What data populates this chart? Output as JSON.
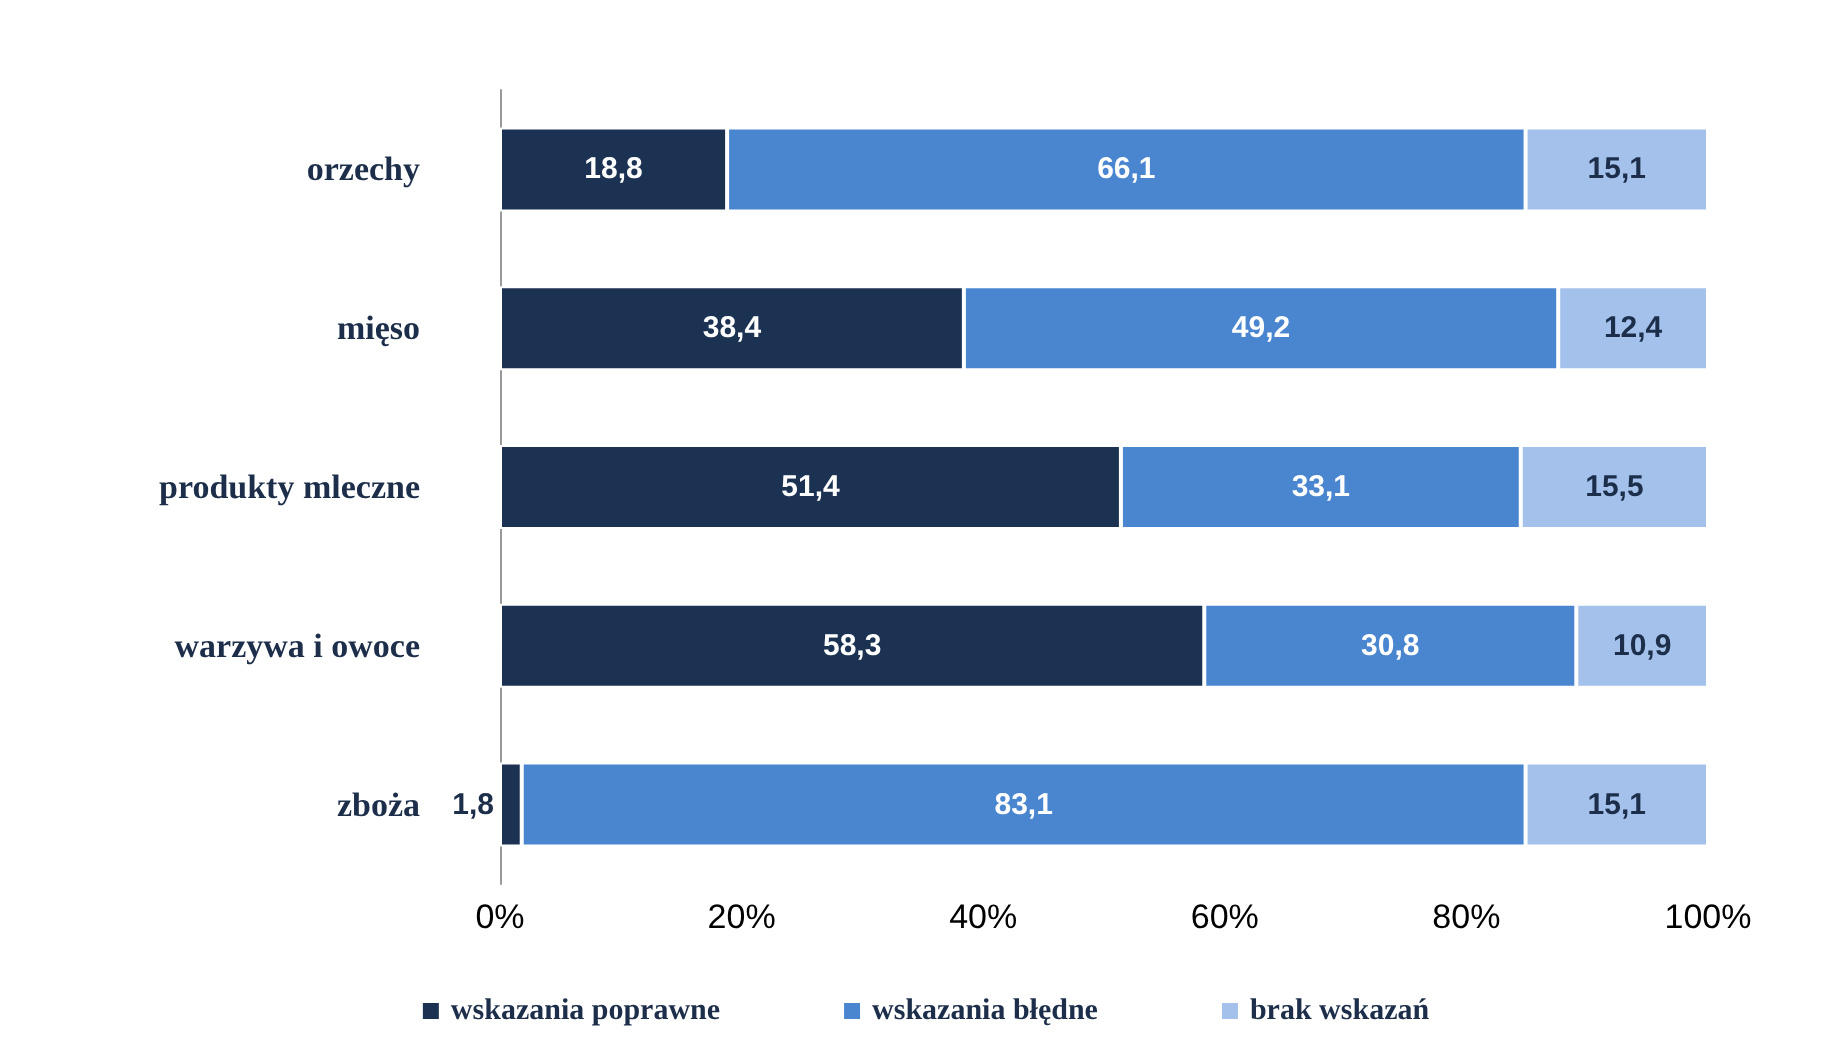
{
  "chart_data": {
    "type": "bar",
    "orientation": "horizontal",
    "stacked": true,
    "categories": [
      "orzechy",
      "mięso",
      "produkty mleczne",
      "warzywa i owoce",
      "zboża"
    ],
    "series": [
      {
        "name": "wskazania poprawne",
        "color": "#1c3253",
        "values": [
          18.8,
          38.4,
          51.4,
          58.3,
          1.8
        ],
        "value_labels": [
          "18,8",
          "38,4",
          "51,4",
          "58,3",
          "1,8"
        ]
      },
      {
        "name": "wskazania błędne",
        "color": "#4a86d0",
        "values": [
          66.1,
          49.2,
          33.1,
          30.8,
          83.1
        ],
        "value_labels": [
          "66,1",
          "49,2",
          "33,1",
          "30,8",
          "83,1"
        ]
      },
      {
        "name": "brak wskazań",
        "color": "#a3c1ea",
        "values": [
          15.1,
          12.4,
          15.5,
          10.9,
          15.1
        ],
        "value_labels": [
          "15,1",
          "12,4",
          "15,5",
          "10,9",
          "15,1"
        ]
      }
    ],
    "xlim": [
      0,
      100
    ],
    "xticks": [
      {
        "value": 0,
        "label": "0%"
      },
      {
        "value": 20,
        "label": "20%"
      },
      {
        "value": 40,
        "label": "40%"
      },
      {
        "value": 60,
        "label": "60%"
      },
      {
        "value": 80,
        "label": "80%"
      },
      {
        "value": 100,
        "label": "100%"
      }
    ],
    "grid": false,
    "legend": "bottom"
  }
}
